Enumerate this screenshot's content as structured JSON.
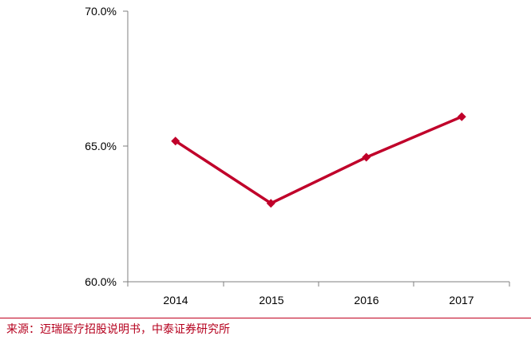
{
  "chart_data": {
    "type": "line",
    "categories": [
      "2014",
      "2015",
      "2016",
      "2017"
    ],
    "series": [
      {
        "values": [
          65.2,
          62.9,
          64.6,
          66.1
        ]
      }
    ],
    "y_tick_labels": [
      "70.0%",
      "65.0%",
      "60.0%"
    ],
    "y_ticks": [
      70,
      65,
      60
    ],
    "ylim": [
      60,
      70
    ],
    "grid": false,
    "line_color": "#c0002a",
    "marker": "diamond"
  },
  "source": {
    "text": "来源：迈瑞医疗招股说明书，中泰证券研究所",
    "color": "#b5001e"
  }
}
